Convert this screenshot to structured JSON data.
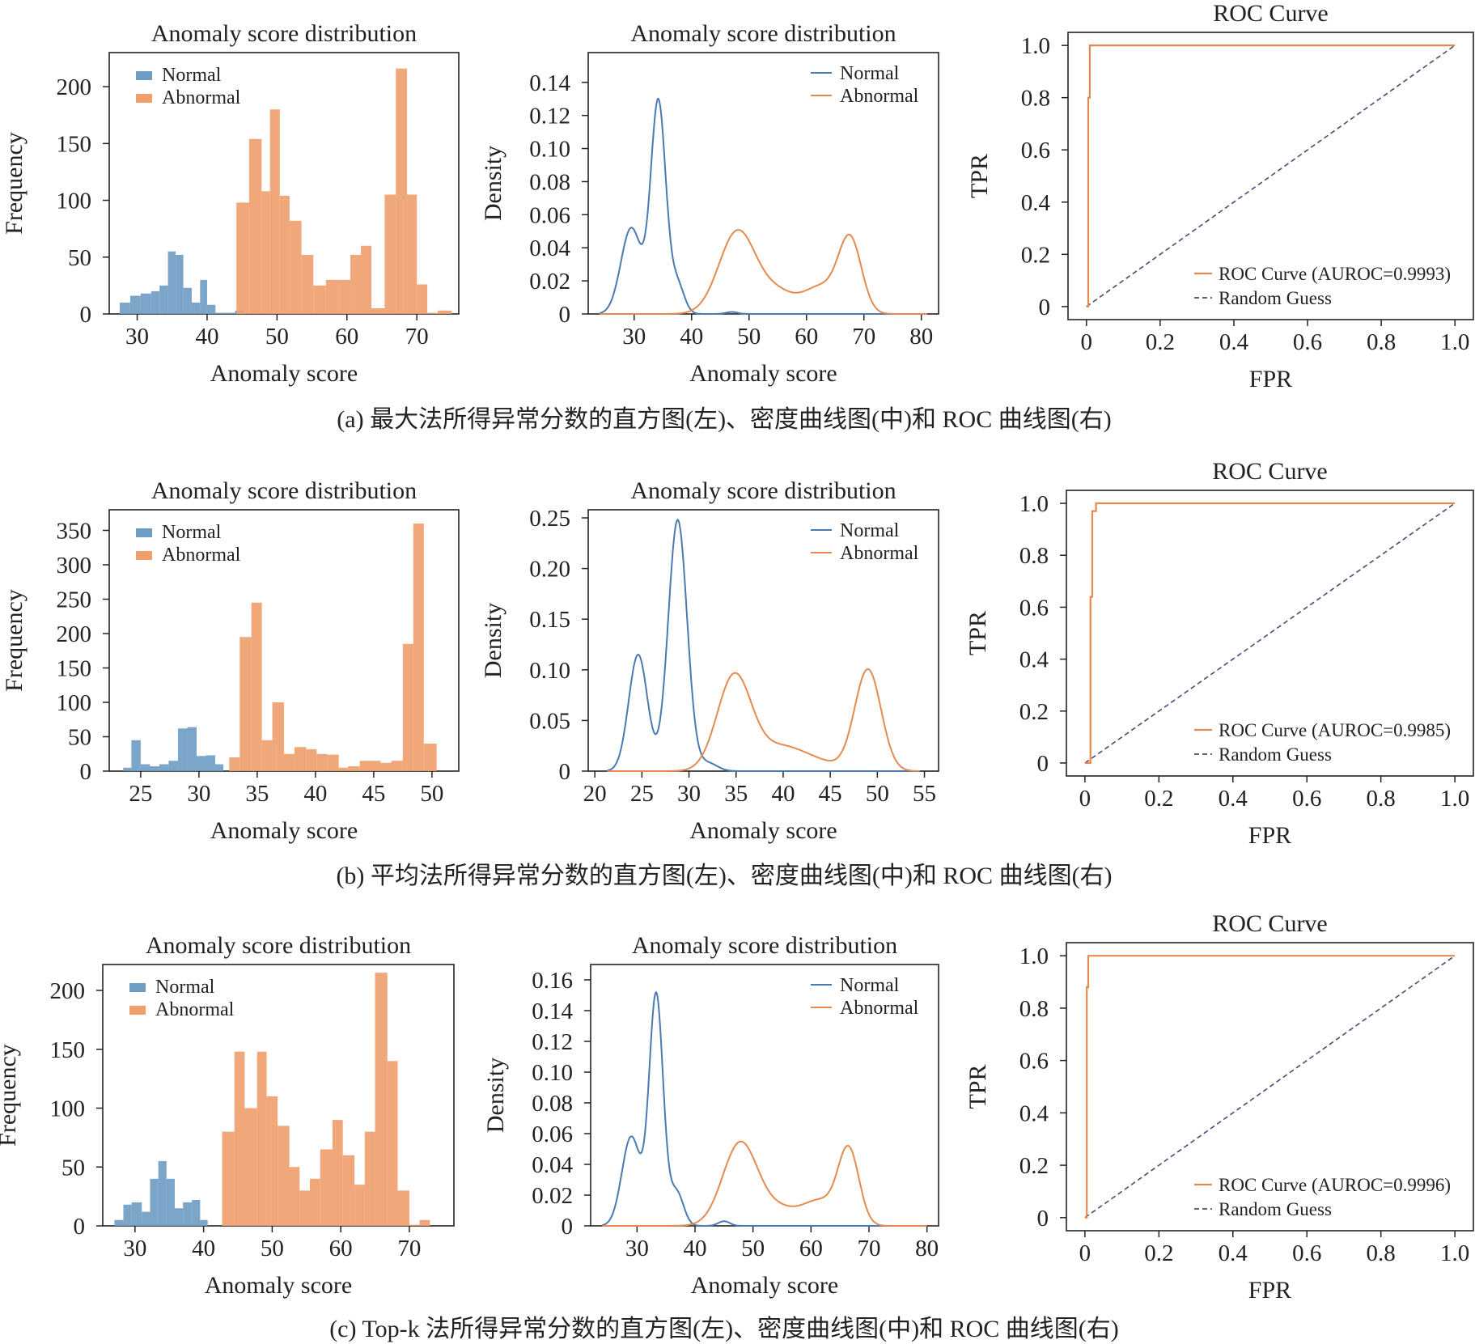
{
  "colors": {
    "normal": "#6e9cc3",
    "abnormal": "#ee9f6c",
    "normal_line": "#4a7bb0",
    "abnormal_line": "#e58a4e",
    "random": "#4a4a7a",
    "axis": "#222222"
  },
  "captions": [
    "(a) 最大法所得异常分数的直方图(左)、密度曲线图(中)和 ROC 曲线图(右)",
    "(b) 平均法所得异常分数的直方图(左)、密度曲线图(中)和 ROC 曲线图(右)",
    "(c) Top-k 法所得异常分数的直方图(左)、密度曲线图(中)和 ROC 曲线图(右)"
  ],
  "chart_data": [
    {
      "type": "bar",
      "row": 0,
      "panel": "hist",
      "title": "Anomaly score distribution",
      "xlabel": "Anomaly score",
      "ylabel": "Frequency",
      "xlim": [
        26,
        76
      ],
      "ylim": [
        0,
        230
      ],
      "xticks": [
        30,
        40,
        50,
        60,
        70
      ],
      "yticks": [
        0,
        50,
        100,
        150,
        200
      ],
      "legend": [
        "Normal",
        "Abnormal"
      ],
      "legend_position": "top-left",
      "series": [
        {
          "name": "Normal",
          "bins": [
            [
              27.5,
              29,
              10
            ],
            [
              29,
              30.5,
              16
            ],
            [
              30.5,
              32,
              18
            ],
            [
              32,
              33.2,
              20
            ],
            [
              33.2,
              34.4,
              25
            ],
            [
              34.4,
              35.5,
              55
            ],
            [
              35.5,
              36.6,
              52
            ],
            [
              36.6,
              37.8,
              23
            ],
            [
              37.8,
              39,
              10
            ],
            [
              39,
              40,
              30
            ],
            [
              40,
              41.2,
              8
            ],
            [
              41.2,
              42.5,
              1
            ],
            [
              42.5,
              44,
              1
            ],
            [
              44,
              45.2,
              3
            ]
          ]
        },
        {
          "name": "Abnormal",
          "bins": [
            [
              44.2,
              46,
              98
            ],
            [
              46,
              47.8,
              154
            ],
            [
              47.8,
              49,
              108
            ],
            [
              49,
              50.4,
              180
            ],
            [
              50.4,
              51.8,
              104
            ],
            [
              51.8,
              53.5,
              82
            ],
            [
              53.5,
              55.2,
              52
            ],
            [
              55.2,
              57,
              25
            ],
            [
              57,
              58.8,
              30
            ],
            [
              58.8,
              60.5,
              30
            ],
            [
              60.5,
              62,
              52
            ],
            [
              62,
              63.5,
              60
            ],
            [
              63.5,
              65.4,
              5
            ],
            [
              65.4,
              67,
              105
            ],
            [
              67,
              68.6,
              216
            ],
            [
              68.6,
              70,
              105
            ],
            [
              70,
              71.5,
              26
            ],
            [
              71.5,
              73,
              1
            ],
            [
              73,
              75,
              3
            ]
          ]
        }
      ]
    },
    {
      "type": "line",
      "row": 0,
      "panel": "density",
      "title": "Anomaly score distribution",
      "xlabel": "Anomaly score",
      "ylabel": "Density",
      "xlim": [
        22,
        83
      ],
      "ylim": [
        0,
        0.158
      ],
      "xticks": [
        30,
        40,
        50,
        60,
        70,
        80
      ],
      "yticks": [
        0,
        0.02,
        0.04,
        0.06,
        0.08,
        0.1,
        0.12,
        0.14
      ],
      "yticklabels": [
        "0",
        "0.02",
        "0.04",
        "0.06",
        "0.08",
        "0.10",
        "0.12",
        "0.14"
      ],
      "legend": [
        "Normal",
        "Abnormal"
      ],
      "legend_position": "top-right",
      "series": [
        {
          "name": "Normal",
          "components": [
            [
              29.5,
              1.8,
              0.052
            ],
            [
              34.2,
              1.3,
              0.128
            ],
            [
              37.5,
              1.2,
              0.018
            ],
            [
              47,
              1,
              0.0012
            ]
          ]
        },
        {
          "name": "Abnormal",
          "components": [
            [
              48,
              3.2,
              0.05
            ],
            [
              55,
              3,
              0.012
            ],
            [
              62.5,
              3,
              0.016
            ],
            [
              67.6,
              2,
              0.044
            ]
          ]
        }
      ]
    },
    {
      "type": "line",
      "row": 0,
      "panel": "roc",
      "title": "ROC Curve",
      "xlabel": "FPR",
      "ylabel": "TPR",
      "xlim": [
        -0.05,
        1.05
      ],
      "ylim": [
        -0.05,
        1.05
      ],
      "xticks": [
        0,
        0.2,
        0.4,
        0.6,
        0.8,
        1.0
      ],
      "yticks": [
        0,
        0.2,
        0.4,
        0.6,
        0.8,
        1.0
      ],
      "xticklabels": [
        "0",
        "0.2",
        "0.4",
        "0.6",
        "0.8",
        "1.0"
      ],
      "yticklabels": [
        "0",
        "0.2",
        "0.4",
        "0.6",
        "0.8",
        "1.0"
      ],
      "legend_position": "lower-right",
      "series": [
        {
          "name": "ROC Curve (AUROC=0.9993)",
          "points": [
            [
              0,
              0
            ],
            [
              0.005,
              0
            ],
            [
              0.005,
              0.8
            ],
            [
              0.009,
              0.8
            ],
            [
              0.009,
              1
            ],
            [
              1,
              1
            ]
          ]
        },
        {
          "name": "Random Guess",
          "points": [
            [
              0,
              0
            ],
            [
              1,
              1
            ]
          ]
        }
      ]
    },
    {
      "type": "bar",
      "row": 1,
      "panel": "hist",
      "title": "Anomaly score distribution",
      "xlabel": "Anomaly score",
      "ylabel": "Frequency",
      "xlim": [
        22.3,
        52.3
      ],
      "ylim": [
        0,
        380
      ],
      "xticks": [
        25,
        30,
        35,
        40,
        45,
        50
      ],
      "yticks": [
        0,
        50,
        100,
        150,
        200,
        250,
        300,
        350
      ],
      "legend": [
        "Normal",
        "Abnormal"
      ],
      "legend_position": "top-left",
      "series": [
        {
          "name": "Normal",
          "bins": [
            [
              23.5,
              24.2,
              5
            ],
            [
              24.2,
              25,
              45
            ],
            [
              25,
              25.8,
              10
            ],
            [
              25.8,
              26.6,
              7
            ],
            [
              26.6,
              27.4,
              10
            ],
            [
              27.4,
              28.2,
              15
            ],
            [
              28.2,
              29,
              62
            ],
            [
              29,
              29.8,
              64
            ],
            [
              29.8,
              30.6,
              22
            ],
            [
              30.6,
              31.4,
              23
            ],
            [
              31.4,
              32.1,
              10
            ]
          ]
        },
        {
          "name": "Abnormal",
          "bins": [
            [
              32.6,
              33.5,
              20
            ],
            [
              33.5,
              34.5,
              195
            ],
            [
              34.5,
              35.4,
              245
            ],
            [
              35.4,
              36.3,
              45
            ],
            [
              36.3,
              37.3,
              100
            ],
            [
              37.3,
              38.2,
              25
            ],
            [
              38.2,
              39.2,
              35
            ],
            [
              39.2,
              40.1,
              32
            ],
            [
              40.1,
              41,
              25
            ],
            [
              41,
              42,
              24
            ],
            [
              42,
              42.8,
              5
            ],
            [
              42.8,
              43.8,
              7
            ],
            [
              43.8,
              44.7,
              15
            ],
            [
              44.7,
              45.6,
              15
            ],
            [
              45.6,
              46.5,
              12
            ],
            [
              46.5,
              47.5,
              15
            ],
            [
              47.5,
              48.4,
              185
            ],
            [
              48.4,
              49.3,
              360
            ],
            [
              49.3,
              50.4,
              40
            ]
          ]
        }
      ]
    },
    {
      "type": "line",
      "row": 1,
      "panel": "density",
      "title": "Anomaly score distribution",
      "xlabel": "Anomaly score",
      "ylabel": "Density",
      "xlim": [
        19.3,
        56.5
      ],
      "ylim": [
        0,
        0.258
      ],
      "xticks": [
        20,
        25,
        30,
        35,
        40,
        45,
        50,
        55
      ],
      "yticks": [
        0,
        0.05,
        0.1,
        0.15,
        0.2,
        0.25
      ],
      "yticklabels": [
        "0",
        "0.05",
        "0.10",
        "0.15",
        "0.20",
        "0.25"
      ],
      "legend": [
        "Normal",
        "Abnormal"
      ],
      "legend_position": "top-right",
      "series": [
        {
          "name": "Normal",
          "components": [
            [
              24.6,
              1,
              0.115
            ],
            [
              28.8,
              1,
              0.248
            ],
            [
              32,
              1,
              0.008
            ]
          ]
        },
        {
          "name": "Abnormal",
          "components": [
            [
              34.8,
              1.8,
              0.093
            ],
            [
              39.5,
              2.5,
              0.022
            ],
            [
              43.5,
              2.5,
              0.008
            ],
            [
              49,
              1.4,
              0.1
            ]
          ]
        }
      ]
    },
    {
      "type": "line",
      "row": 1,
      "panel": "roc",
      "title": "ROC Curve",
      "xlabel": "FPR",
      "ylabel": "TPR",
      "xlim": [
        -0.05,
        1.05
      ],
      "ylim": [
        -0.05,
        1.05
      ],
      "xticks": [
        0,
        0.2,
        0.4,
        0.6,
        0.8,
        1.0
      ],
      "yticks": [
        0,
        0.2,
        0.4,
        0.6,
        0.8,
        1.0
      ],
      "xticklabels": [
        "0",
        "0.2",
        "0.4",
        "0.6",
        "0.8",
        "1.0"
      ],
      "yticklabels": [
        "0",
        "0.2",
        "0.4",
        "0.6",
        "0.8",
        "1.0"
      ],
      "legend_position": "lower-right",
      "series": [
        {
          "name": "ROC Curve (AUROC=0.9985)",
          "points": [
            [
              0,
              0
            ],
            [
              0.015,
              0
            ],
            [
              0.015,
              0.64
            ],
            [
              0.02,
              0.64
            ],
            [
              0.02,
              0.97
            ],
            [
              0.03,
              0.97
            ],
            [
              0.03,
              1
            ],
            [
              1,
              1
            ]
          ]
        },
        {
          "name": "Random Guess",
          "points": [
            [
              0,
              0
            ],
            [
              1,
              1
            ]
          ]
        }
      ]
    },
    {
      "type": "bar",
      "row": 2,
      "panel": "hist",
      "title": "Anomaly score distribution",
      "xlabel": "Anomaly score",
      "ylabel": "Frequency",
      "xlim": [
        25.3,
        76.5
      ],
      "ylim": [
        0,
        222
      ],
      "xticks": [
        30,
        40,
        50,
        60,
        70
      ],
      "yticks": [
        0,
        50,
        100,
        150,
        200
      ],
      "legend": [
        "Normal",
        "Abnormal"
      ],
      "legend_position": "top-left",
      "series": [
        {
          "name": "Normal",
          "bins": [
            [
              27,
              28.3,
              5
            ],
            [
              28.3,
              29.5,
              18
            ],
            [
              29.5,
              31,
              20
            ],
            [
              31,
              32.2,
              12
            ],
            [
              32.2,
              33.4,
              40
            ],
            [
              33.4,
              34.6,
              55
            ],
            [
              34.6,
              35.8,
              40
            ],
            [
              35.8,
              37,
              15
            ],
            [
              37,
              38.3,
              20
            ],
            [
              38.3,
              39.5,
              22
            ],
            [
              39.5,
              40.6,
              5
            ]
          ]
        },
        {
          "name": "Abnormal",
          "bins": [
            [
              42.7,
              44.5,
              80
            ],
            [
              44.5,
              46,
              148
            ],
            [
              46,
              47.8,
              100
            ],
            [
              47.8,
              49.2,
              148
            ],
            [
              49.2,
              50.8,
              110
            ],
            [
              50.8,
              52.5,
              85
            ],
            [
              52.5,
              54,
              50
            ],
            [
              54,
              55.5,
              30
            ],
            [
              55.5,
              57,
              40
            ],
            [
              57,
              58.8,
              65
            ],
            [
              58.8,
              60.3,
              90
            ],
            [
              60.3,
              62,
              60
            ],
            [
              62,
              63.5,
              35
            ],
            [
              63.5,
              65,
              80
            ],
            [
              65,
              66.8,
              215
            ],
            [
              66.8,
              68.3,
              140
            ],
            [
              68.3,
              70,
              30
            ],
            [
              70,
              71.5,
              1
            ],
            [
              71.5,
              73,
              5
            ]
          ]
        }
      ]
    },
    {
      "type": "line",
      "row": 2,
      "panel": "density",
      "title": "Anomaly score distribution",
      "xlabel": "Anomaly score",
      "ylabel": "Density",
      "xlim": [
        22,
        82
      ],
      "ylim": [
        0,
        0.17
      ],
      "xticks": [
        30,
        40,
        50,
        60,
        70,
        80
      ],
      "yticks": [
        0,
        0.02,
        0.04,
        0.06,
        0.08,
        0.1,
        0.12,
        0.14,
        0.16
      ],
      "yticklabels": [
        "0",
        "0.02",
        "0.04",
        "0.06",
        "0.08",
        "0.10",
        "0.12",
        "0.14",
        "0.16"
      ],
      "legend": [
        "Normal",
        "Abnormal"
      ],
      "legend_position": "top-right",
      "series": [
        {
          "name": "Normal",
          "components": [
            [
              29,
              1.6,
              0.058
            ],
            [
              33.3,
              1.2,
              0.15
            ],
            [
              36.8,
              1.2,
              0.022
            ],
            [
              45,
              1,
              0.003
            ]
          ]
        },
        {
          "name": "Abnormal",
          "components": [
            [
              47.8,
              3,
              0.054
            ],
            [
              54.5,
              3,
              0.01
            ],
            [
              61.5,
              3,
              0.016
            ],
            [
              66.5,
              1.8,
              0.048
            ]
          ]
        }
      ]
    },
    {
      "type": "line",
      "row": 2,
      "panel": "roc",
      "title": "ROC Curve",
      "xlabel": "FPR",
      "ylabel": "TPR",
      "xlim": [
        -0.05,
        1.05
      ],
      "ylim": [
        -0.05,
        1.05
      ],
      "xticks": [
        0,
        0.2,
        0.4,
        0.6,
        0.8,
        1.0
      ],
      "yticks": [
        0,
        0.2,
        0.4,
        0.6,
        0.8,
        1.0
      ],
      "xticklabels": [
        "0",
        "0.2",
        "0.4",
        "0.6",
        "0.8",
        "1.0"
      ],
      "yticklabels": [
        "0",
        "0.2",
        "0.4",
        "0.6",
        "0.8",
        "1.0"
      ],
      "legend_position": "lower-right",
      "series": [
        {
          "name": "ROC Curve (AUROC=0.9996)",
          "points": [
            [
              0,
              0
            ],
            [
              0.005,
              0
            ],
            [
              0.005,
              0.88
            ],
            [
              0.009,
              0.88
            ],
            [
              0.009,
              1
            ],
            [
              1,
              1
            ]
          ]
        },
        {
          "name": "Random Guess",
          "points": [
            [
              0,
              0
            ],
            [
              1,
              1
            ]
          ]
        }
      ]
    }
  ]
}
